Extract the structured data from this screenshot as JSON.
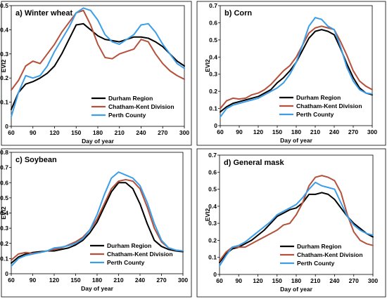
{
  "colors": {
    "durham": "#000000",
    "chatham": "#b5503a",
    "perth": "#3c9ee8"
  },
  "chart_data": [
    {
      "type": "line",
      "title": "a) Winter wheat",
      "xlabel": "Day of year",
      "ylabel": "EVI2",
      "xlim": [
        60,
        300
      ],
      "ylim": [
        0,
        0.5
      ],
      "xticks": [
        60,
        90,
        120,
        150,
        180,
        210,
        240,
        270,
        300
      ],
      "yticks": [
        0,
        0.1,
        0.2,
        0.3,
        0.4,
        0.5
      ],
      "legend": "lower-right",
      "x": [
        60,
        70,
        80,
        90,
        100,
        110,
        120,
        130,
        140,
        150,
        160,
        170,
        180,
        190,
        200,
        210,
        220,
        230,
        240,
        250,
        260,
        270,
        280,
        290,
        300
      ],
      "series": [
        {
          "name": "Durham Region",
          "values": [
            0.07,
            0.14,
            0.175,
            0.185,
            0.2,
            0.22,
            0.25,
            0.3,
            0.36,
            0.42,
            0.425,
            0.4,
            0.375,
            0.36,
            0.355,
            0.35,
            0.36,
            0.37,
            0.37,
            0.365,
            0.35,
            0.33,
            0.3,
            0.27,
            0.25
          ]
        },
        {
          "name": "Chatham-Kent Division",
          "values": [
            0.15,
            0.19,
            0.25,
            0.27,
            0.26,
            0.3,
            0.34,
            0.39,
            0.43,
            0.47,
            0.48,
            0.42,
            0.34,
            0.285,
            0.28,
            0.3,
            0.31,
            0.32,
            0.36,
            0.35,
            0.3,
            0.26,
            0.23,
            0.21,
            0.195
          ]
        },
        {
          "name": "Perth County",
          "values": [
            0.04,
            0.14,
            0.21,
            0.2,
            0.21,
            0.25,
            0.31,
            0.36,
            0.41,
            0.47,
            0.49,
            0.48,
            0.44,
            0.38,
            0.35,
            0.34,
            0.36,
            0.38,
            0.42,
            0.425,
            0.39,
            0.34,
            0.3,
            0.26,
            0.24
          ]
        }
      ]
    },
    {
      "type": "line",
      "title": "b) Corn",
      "xlabel": "Day of year",
      "ylabel": "EVI2",
      "xlim": [
        60,
        300
      ],
      "ylim": [
        0,
        0.7
      ],
      "xticks": [
        60,
        90,
        120,
        150,
        180,
        210,
        240,
        270,
        300
      ],
      "yticks": [
        0,
        0.1,
        0.2,
        0.3,
        0.4,
        0.5,
        0.6,
        0.7
      ],
      "legend": "lower-right",
      "x": [
        60,
        70,
        80,
        90,
        100,
        110,
        120,
        130,
        140,
        150,
        160,
        170,
        180,
        190,
        200,
        210,
        220,
        230,
        240,
        250,
        260,
        270,
        280,
        290,
        300
      ],
      "series": [
        {
          "name": "Durham Region",
          "values": [
            0.08,
            0.11,
            0.13,
            0.14,
            0.15,
            0.16,
            0.17,
            0.19,
            0.21,
            0.25,
            0.28,
            0.32,
            0.37,
            0.44,
            0.51,
            0.55,
            0.56,
            0.55,
            0.53,
            0.45,
            0.36,
            0.28,
            0.22,
            0.19,
            0.18
          ]
        },
        {
          "name": "Chatham-Kent Division",
          "values": [
            0.1,
            0.145,
            0.16,
            0.155,
            0.16,
            0.18,
            0.19,
            0.21,
            0.24,
            0.28,
            0.32,
            0.35,
            0.4,
            0.47,
            0.54,
            0.57,
            0.58,
            0.57,
            0.56,
            0.49,
            0.41,
            0.32,
            0.26,
            0.23,
            0.21
          ]
        },
        {
          "name": "Perth County",
          "values": [
            0.05,
            0.1,
            0.12,
            0.13,
            0.14,
            0.15,
            0.16,
            0.18,
            0.2,
            0.22,
            0.25,
            0.3,
            0.37,
            0.47,
            0.58,
            0.63,
            0.62,
            0.58,
            0.56,
            0.46,
            0.34,
            0.26,
            0.21,
            0.19,
            0.185
          ]
        }
      ]
    },
    {
      "type": "line",
      "title": "c) Soybean",
      "xlabel": "Day of year",
      "ylabel": "EVI2",
      "xlim": [
        60,
        300
      ],
      "ylim": [
        0,
        0.8
      ],
      "xticks": [
        60,
        90,
        120,
        150,
        180,
        210,
        240,
        270,
        300
      ],
      "yticks": [
        0,
        0.1,
        0.2,
        0.3,
        0.4,
        0.5,
        0.6,
        0.7,
        0.8
      ],
      "legend": "lower-right",
      "x": [
        60,
        70,
        80,
        90,
        100,
        110,
        120,
        130,
        140,
        150,
        160,
        170,
        180,
        190,
        200,
        210,
        220,
        230,
        240,
        250,
        260,
        270,
        280,
        290,
        300
      ],
      "series": [
        {
          "name": "Durham Region",
          "values": [
            0.07,
            0.11,
            0.13,
            0.14,
            0.145,
            0.15,
            0.15,
            0.16,
            0.17,
            0.19,
            0.22,
            0.27,
            0.34,
            0.44,
            0.54,
            0.6,
            0.6,
            0.56,
            0.46,
            0.33,
            0.22,
            0.18,
            0.16,
            0.15,
            0.145
          ]
        },
        {
          "name": "Chatham-Kent Division",
          "values": [
            0.09,
            0.13,
            0.14,
            0.135,
            0.14,
            0.15,
            0.16,
            0.17,
            0.19,
            0.21,
            0.24,
            0.29,
            0.36,
            0.46,
            0.56,
            0.61,
            0.62,
            0.61,
            0.56,
            0.44,
            0.3,
            0.21,
            0.17,
            0.155,
            0.15
          ]
        },
        {
          "name": "Perth County",
          "values": [
            0.05,
            0.1,
            0.12,
            0.13,
            0.14,
            0.15,
            0.17,
            0.175,
            0.185,
            0.2,
            0.23,
            0.29,
            0.39,
            0.52,
            0.63,
            0.67,
            0.65,
            0.63,
            0.58,
            0.47,
            0.33,
            0.22,
            0.17,
            0.155,
            0.15
          ]
        }
      ]
    },
    {
      "type": "line",
      "title": "d) General mask",
      "xlabel": "Day of year",
      "ylabel": "EVI2",
      "xlim": [
        60,
        300
      ],
      "ylim": [
        0,
        0.7
      ],
      "xticks": [
        60,
        90,
        120,
        150,
        180,
        210,
        240,
        270,
        300
      ],
      "yticks": [
        0,
        0.1,
        0.2,
        0.3,
        0.4,
        0.5,
        0.6,
        0.7
      ],
      "legend": "lower-right",
      "x": [
        60,
        70,
        80,
        90,
        100,
        110,
        120,
        130,
        140,
        150,
        160,
        170,
        180,
        190,
        200,
        210,
        220,
        230,
        240,
        250,
        260,
        270,
        280,
        290,
        300
      ],
      "series": [
        {
          "name": "Durham Region",
          "values": [
            0.07,
            0.12,
            0.15,
            0.16,
            0.18,
            0.2,
            0.23,
            0.26,
            0.3,
            0.34,
            0.36,
            0.38,
            0.39,
            0.42,
            0.47,
            0.47,
            0.48,
            0.47,
            0.44,
            0.39,
            0.34,
            0.3,
            0.27,
            0.24,
            0.22
          ]
        },
        {
          "name": "Chatham-Kent Division",
          "values": [
            0.08,
            0.13,
            0.16,
            0.16,
            0.16,
            0.18,
            0.2,
            0.22,
            0.24,
            0.26,
            0.29,
            0.3,
            0.35,
            0.42,
            0.52,
            0.57,
            0.58,
            0.57,
            0.55,
            0.48,
            0.35,
            0.25,
            0.2,
            0.18,
            0.17
          ]
        },
        {
          "name": "Perth County",
          "values": [
            0.05,
            0.11,
            0.16,
            0.17,
            0.19,
            0.22,
            0.25,
            0.28,
            0.31,
            0.35,
            0.37,
            0.39,
            0.41,
            0.45,
            0.5,
            0.54,
            0.52,
            0.51,
            0.5,
            0.42,
            0.34,
            0.29,
            0.26,
            0.24,
            0.23
          ]
        }
      ]
    }
  ]
}
